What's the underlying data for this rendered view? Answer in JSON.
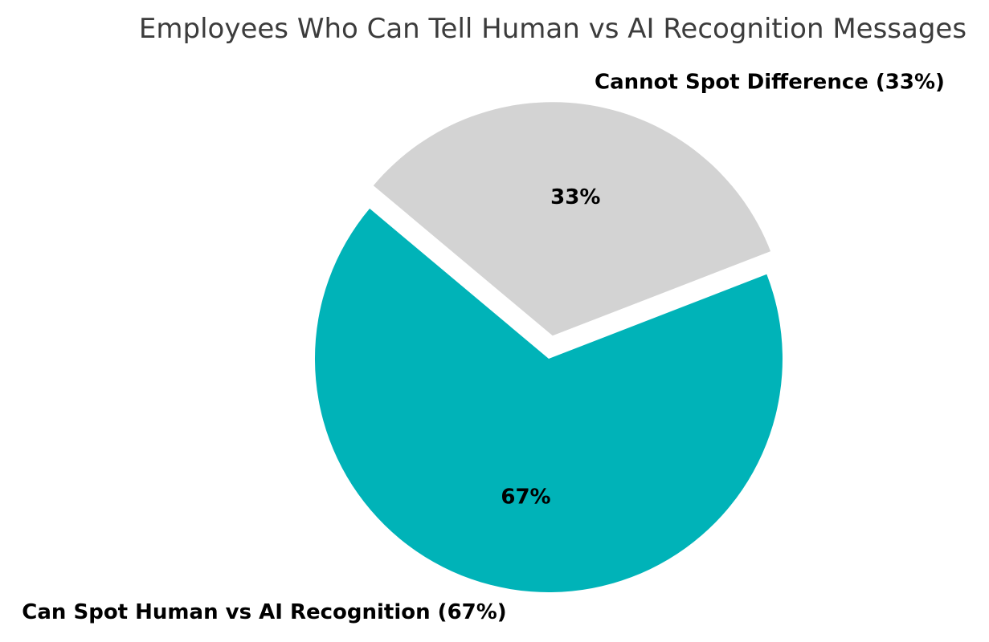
{
  "chart_data": {
    "type": "pie",
    "title": "Employees Who Can Tell Human vs AI Recognition Messages",
    "slices": [
      {
        "id": "can-spot",
        "label": "Can Spot Human vs AI Recognition (67%)",
        "value": 67,
        "pct_label": "67%",
        "color": "#00b3b8",
        "explode": 0
      },
      {
        "id": "cannot-spot",
        "label": "Cannot Spot Difference (33%)",
        "value": 33,
        "pct_label": "33%",
        "color": "#d3d3d3",
        "explode": 0.1
      }
    ],
    "start_angle": 140,
    "direction": "counterclockwise",
    "legend_position": "none",
    "background_color": "#ffffff",
    "title_color": "#3c3c3c",
    "label_color": "#000000"
  }
}
